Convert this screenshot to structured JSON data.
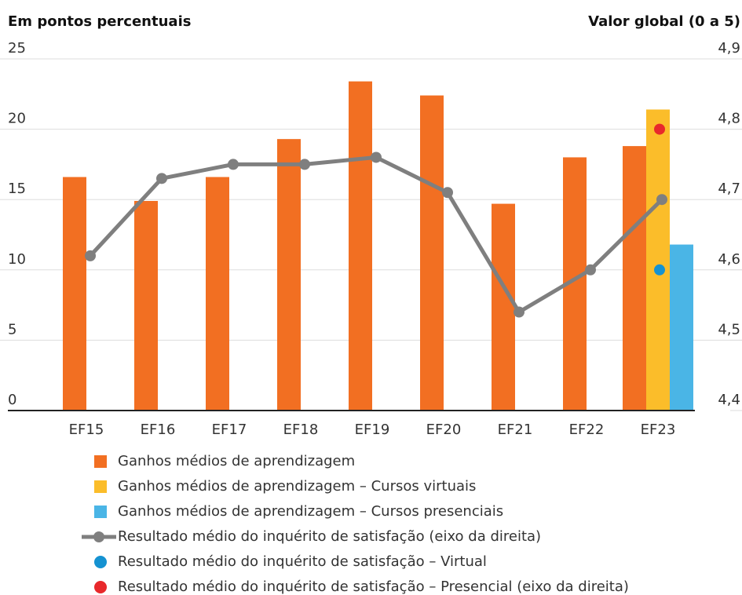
{
  "chart_data": {
    "type": "bar",
    "y_axis_title": "Em pontos percentuais",
    "y2_axis_title": "Valor global (0 a 5)",
    "categories": [
      "EF15",
      "EF16",
      "EF17",
      "EF18",
      "EF19",
      "EF20",
      "EF21",
      "EF22",
      "EF23"
    ],
    "ylim": [
      0,
      25
    ],
    "yticks": [
      0,
      5,
      10,
      15,
      20,
      25
    ],
    "y2lim": [
      4.4,
      4.9
    ],
    "y2ticks": [
      {
        "value": 4.4,
        "label": "4,4"
      },
      {
        "value": 4.5,
        "label": "4,5"
      },
      {
        "value": 4.6,
        "label": "4,6"
      },
      {
        "value": 4.7,
        "label": "4,7"
      },
      {
        "value": 4.8,
        "label": "4,8"
      },
      {
        "value": 4.9,
        "label": "4,9"
      }
    ],
    "grid": true,
    "series": [
      {
        "name": "Ganhos médios de aprendizagem",
        "type": "bar",
        "color": "#f26f22",
        "values": [
          16.6,
          14.9,
          16.6,
          19.3,
          23.4,
          22.4,
          14.7,
          18.0,
          18.8
        ]
      },
      {
        "name": "Ganhos médios de aprendizagem – Cursos virtuais",
        "type": "bar",
        "color": "#fbbd2a",
        "values": [
          null,
          null,
          null,
          null,
          null,
          null,
          null,
          null,
          21.4
        ]
      },
      {
        "name": "Ganhos médios de aprendizagem – Cursos presenciais",
        "type": "bar",
        "color": "#4ab5e6",
        "values": [
          null,
          null,
          null,
          null,
          null,
          null,
          null,
          null,
          11.8
        ]
      },
      {
        "name": "Resultado médio do inquérito de satisfação (eixo da direita)",
        "type": "line",
        "axis": "y2",
        "color": "#7f7f7f",
        "values": [
          4.62,
          4.73,
          4.75,
          4.75,
          4.76,
          4.71,
          4.54,
          4.6,
          4.7
        ]
      },
      {
        "name": "Resultado médio do inquérito de satisfação – Virtual",
        "type": "scatter",
        "axis": "y2",
        "color": "#1592d1",
        "values": [
          null,
          null,
          null,
          null,
          null,
          null,
          null,
          null,
          4.6
        ]
      },
      {
        "name": "Resultado médio do inquérito de satisfação – Presencial (eixo da direita)",
        "type": "scatter",
        "axis": "y2",
        "color": "#e8282b",
        "values": [
          null,
          null,
          null,
          null,
          null,
          null,
          null,
          null,
          4.8
        ]
      }
    ]
  }
}
